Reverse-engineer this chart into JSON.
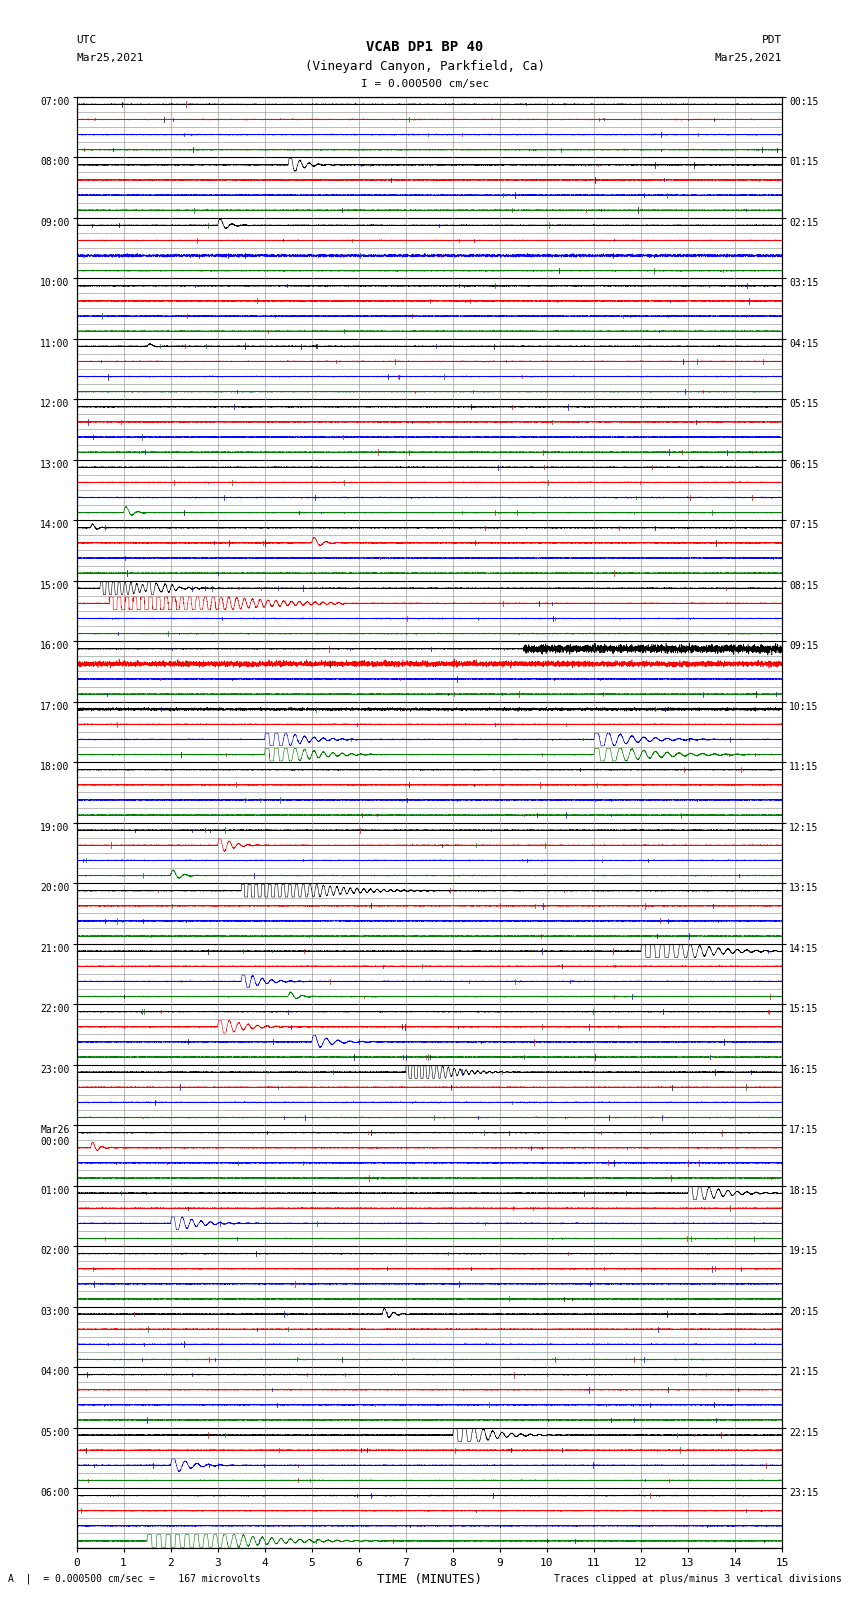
{
  "title_line1": "VCAB DP1 BP 40",
  "title_line2": "(Vineyard Canyon, Parkfield, Ca)",
  "scale_text": "I = 0.000500 cm/sec",
  "utc_label": "UTC",
  "utc_date": "Mar25,2021",
  "pdt_label": "PDT",
  "pdt_date": "Mar25,2021",
  "xlabel": "TIME (MINUTES)",
  "bottom_left_text": "A  |  = 0.000500 cm/sec =    167 microvolts",
  "bottom_right_text": "Traces clipped at plus/minus 3 vertical divisions",
  "xlim": [
    0,
    15
  ],
  "xticks": [
    0,
    1,
    2,
    3,
    4,
    5,
    6,
    7,
    8,
    9,
    10,
    11,
    12,
    13,
    14,
    15
  ],
  "num_hours": 24,
  "sub_rows": 4,
  "bg_color": "#ffffff",
  "grid_major_color": "#000000",
  "grid_minor_color": "#888888",
  "trace_colors_cycle": [
    "black",
    "red",
    "blue",
    "green"
  ],
  "left_labels": [
    "07:00",
    "08:00",
    "09:00",
    "10:00",
    "11:00",
    "12:00",
    "13:00",
    "14:00",
    "15:00",
    "16:00",
    "17:00",
    "18:00",
    "19:00",
    "20:00",
    "21:00",
    "22:00",
    "23:00",
    "Mar26\n00:00",
    "01:00",
    "02:00",
    "03:00",
    "04:00",
    "05:00",
    "06:00"
  ],
  "right_labels": [
    "00:15",
    "01:15",
    "02:15",
    "03:15",
    "04:15",
    "05:15",
    "06:15",
    "07:15",
    "08:15",
    "09:15",
    "10:15",
    "11:15",
    "12:15",
    "13:15",
    "14:15",
    "15:15",
    "16:15",
    "17:15",
    "18:15",
    "19:15",
    "20:15",
    "21:15",
    "22:15",
    "23:15"
  ],
  "figsize": [
    8.5,
    16.13
  ],
  "dpi": 100
}
